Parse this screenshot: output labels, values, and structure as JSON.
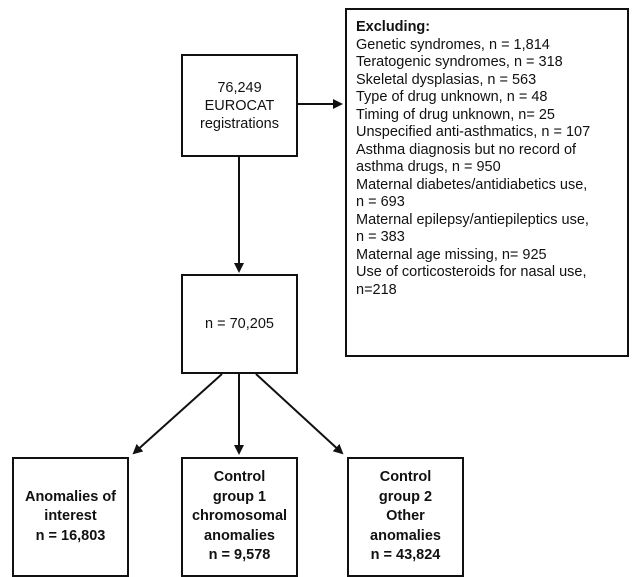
{
  "top_box": {
    "lines": [
      "76,249",
      "EUROCAT",
      "registrations"
    ]
  },
  "exclusion_box": {
    "title": "Excluding:",
    "lines": [
      "Genetic syndromes, n = 1,814",
      "Teratogenic syndromes, n = 318",
      "Skeletal dysplasias, n = 563",
      "Type of drug unknown, n = 48",
      "Timing of drug unknown, n= 25",
      "Unspecified anti-asthmatics, n = 107",
      "Asthma diagnosis but no record of",
      "asthma drugs, n = 950",
      "Maternal diabetes/antidiabetics use,",
      "n = 693",
      "Maternal epilepsy/antiepileptics use,",
      "n = 383",
      "Maternal age missing, n= 925",
      "Use of corticosteroids for nasal use,",
      "n=218"
    ]
  },
  "middle_box": {
    "text": "n = 70,205"
  },
  "bottom_boxes": [
    {
      "lines": [
        "Anomalies of",
        "interest",
        "n = 16,803"
      ]
    },
    {
      "lines": [
        "Control",
        "group 1",
        "chromosomal",
        "anomalies",
        "n = 9,578"
      ]
    },
    {
      "lines": [
        "Control",
        "group 2",
        "Other",
        "anomalies",
        "n = 43,824"
      ]
    }
  ]
}
